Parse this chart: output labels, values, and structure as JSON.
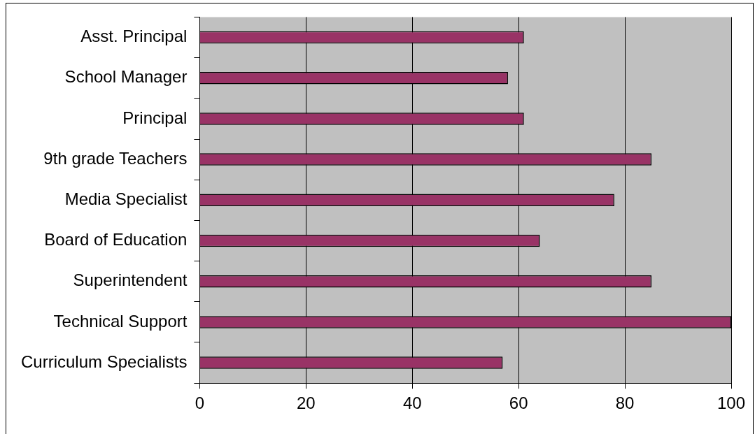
{
  "chart_data": {
    "type": "bar",
    "orientation": "horizontal",
    "categories": [
      "Asst. Principal",
      "School Manager",
      "Principal",
      "9th grade Teachers",
      "Media Specialist",
      "Board of Education",
      "Superintendent",
      "Technical Support",
      "Curriculum Specialists"
    ],
    "values": [
      61,
      58,
      61,
      85,
      78,
      64,
      85,
      100,
      57
    ],
    "color": "#993366",
    "xlim": [
      0,
      100
    ],
    "xticks": [
      0,
      20,
      40,
      60,
      80,
      100
    ],
    "grid": "x",
    "legend": false
  }
}
